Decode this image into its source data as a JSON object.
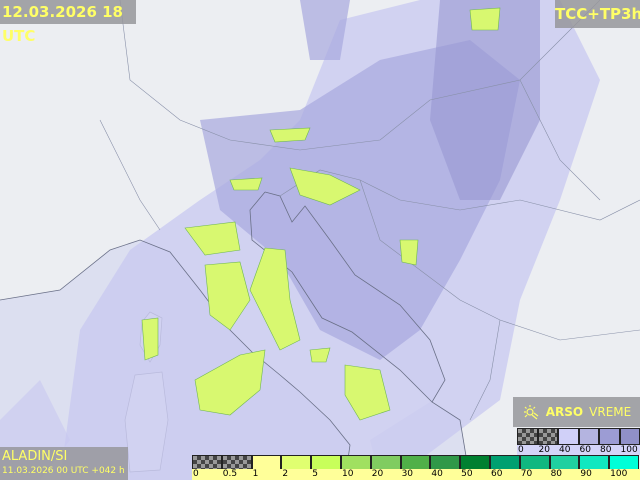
{
  "header": {
    "valid_time": "12.03.2026 18 UTC",
    "product": "TCC+TP3h"
  },
  "model": {
    "name": "ALADIN/SI",
    "run": "11.03.2026 00 UTC +042 h"
  },
  "brand": {
    "icon": "sun-cloud-icon",
    "name_bold": "ARSO",
    "name_light": "VREME"
  },
  "cloud_legend": {
    "labels": [
      "0",
      "20",
      "40",
      "60",
      "80",
      "100"
    ],
    "colors": [
      "checker",
      "checker",
      "#d0d0f8",
      "#b4b4e0",
      "#9c9cd4",
      "#9090c8"
    ]
  },
  "precip_legend": {
    "labels": [
      "0",
      "0.5",
      "1",
      "2",
      "5",
      "10",
      "20",
      "30",
      "40",
      "50",
      "60",
      "70",
      "80",
      "90",
      "100"
    ],
    "colors": [
      "checker",
      "checker",
      "#ffff99",
      "#e0ff70",
      "#c8ff5a",
      "#a0e060",
      "#80cc60",
      "#50b048",
      "#309848",
      "#008030",
      "#00a070",
      "#10b880",
      "#20d0a0",
      "#10e8c0",
      "#00ffd8"
    ]
  },
  "colors": {
    "label_text": "#ffff66",
    "label_box": "#96969b",
    "cloud_light": "#c8c8f0",
    "cloud_dense": "#9c9cd8",
    "precip": "#d8f870"
  }
}
